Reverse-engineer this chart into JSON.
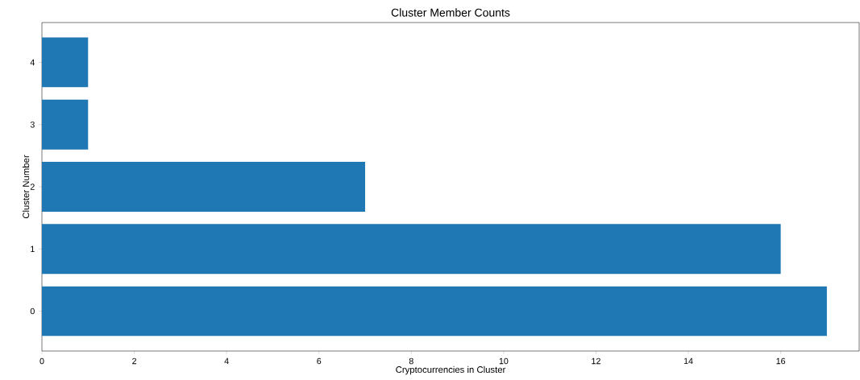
{
  "chart_data": {
    "type": "bar",
    "orientation": "horizontal",
    "title": "Cluster Member Counts",
    "xlabel": "Cryptocurrencies in Cluster",
    "ylabel": "Cluster Number",
    "categories": [
      "4",
      "3",
      "2",
      "1",
      "0"
    ],
    "values": [
      1,
      1,
      7,
      16,
      17
    ],
    "color": "#1f77b4",
    "xlim": [
      0,
      17.7
    ],
    "xticks": [
      0,
      2,
      4,
      6,
      8,
      10,
      12,
      14,
      16
    ],
    "grid": false
  }
}
